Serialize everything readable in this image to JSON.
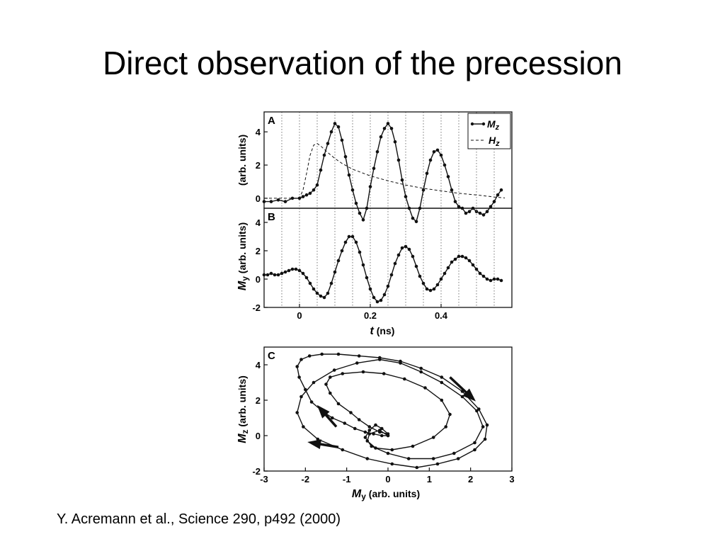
{
  "slide": {
    "title": "Direct observation of the precession",
    "citation": "Y. Acremann et al., Science 290, p492 (2000)"
  },
  "colors": {
    "line": "#111111",
    "grid": "#555555",
    "background": "#ffffff"
  },
  "chart_data": [
    {
      "panel": "A",
      "type": "line",
      "xlim": [
        -0.1,
        0.6
      ],
      "ylim": [
        -0.6,
        5.2
      ],
      "ytick_labels": [
        "0",
        "2",
        "4"
      ],
      "ylabel": "(arb. units)",
      "grid": "vertical-dotted",
      "legend": {
        "placement": "top-right",
        "entries": [
          "M",
          "H"
        ],
        "subscripts": [
          "z",
          "z"
        ]
      },
      "series": [
        {
          "name": "Mz",
          "style": "line-with-dots",
          "x": [
            -0.1,
            -0.08,
            -0.06,
            -0.04,
            -0.02,
            0,
            0.01,
            0.02,
            0.03,
            0.04,
            0.05,
            0.06,
            0.07,
            0.08,
            0.09,
            0.1,
            0.11,
            0.12,
            0.13,
            0.14,
            0.15,
            0.16,
            0.17,
            0.18,
            0.19,
            0.2,
            0.21,
            0.22,
            0.23,
            0.24,
            0.25,
            0.26,
            0.27,
            0.28,
            0.29,
            0.3,
            0.31,
            0.32,
            0.33,
            0.34,
            0.35,
            0.36,
            0.37,
            0.38,
            0.39,
            0.4,
            0.41,
            0.42,
            0.43,
            0.44,
            0.45,
            0.46,
            0.47,
            0.48,
            0.49,
            0.5,
            0.51,
            0.52,
            0.53,
            0.54,
            0.55,
            0.56,
            0.57
          ],
          "y": [
            -0.2,
            -0.2,
            -0.1,
            -0.2,
            0,
            0,
            0.1,
            0.2,
            0.3,
            0.5,
            0.8,
            1.7,
            2.6,
            3.3,
            4.0,
            4.5,
            4.3,
            3.5,
            2.5,
            1.4,
            0.5,
            -0.3,
            -0.9,
            -1.3,
            -0.6,
            0.7,
            1.8,
            2.8,
            3.7,
            4.2,
            4.5,
            4.2,
            3.4,
            2.3,
            1.1,
            0.1,
            -0.6,
            -1.2,
            -1.4,
            -0.6,
            0.5,
            1.5,
            2.3,
            2.8,
            2.9,
            2.6,
            2.0,
            1.3,
            0.5,
            -0.2,
            -0.5,
            -0.6,
            -0.9,
            -0.8,
            -0.6,
            -0.8,
            -0.9,
            -1.0,
            -0.8,
            -0.5,
            -0.2,
            0.2,
            0.5
          ]
        },
        {
          "name": "Hz",
          "style": "dashed",
          "x": [
            -0.1,
            -0.05,
            0,
            0.01,
            0.02,
            0.03,
            0.04,
            0.05,
            0.06,
            0.07,
            0.08,
            0.1,
            0.12,
            0.15,
            0.2,
            0.25,
            0.3,
            0.35,
            0.4,
            0.45,
            0.5,
            0.55,
            0.58
          ],
          "y": [
            0,
            0,
            0,
            0.5,
            1.5,
            2.6,
            3.2,
            3.3,
            3.15,
            2.95,
            2.75,
            2.4,
            2.1,
            1.75,
            1.35,
            1.05,
            0.8,
            0.6,
            0.45,
            0.3,
            0.2,
            0.08,
            0.02
          ]
        }
      ]
    },
    {
      "panel": "B",
      "type": "line",
      "xlim": [
        -0.1,
        0.6
      ],
      "ylim": [
        -2.0,
        5.0
      ],
      "xtick_labels": [
        "0",
        "0.2",
        "0.4"
      ],
      "ytick_labels": [
        "-2",
        "0",
        "2",
        "4"
      ],
      "xlabel": "(ns)",
      "xlabel_symbol": "t",
      "ylabel": "(arb. units)",
      "ylabel_symbol": "M",
      "ylabel_subscript": "y",
      "grid": "vertical-dotted",
      "series": [
        {
          "name": "My",
          "style": "line-with-dots",
          "x": [
            -0.1,
            -0.09,
            -0.08,
            -0.07,
            -0.06,
            -0.05,
            -0.04,
            -0.03,
            -0.02,
            -0.01,
            0,
            0.01,
            0.02,
            0.03,
            0.04,
            0.05,
            0.06,
            0.07,
            0.08,
            0.09,
            0.1,
            0.11,
            0.12,
            0.13,
            0.14,
            0.15,
            0.16,
            0.17,
            0.18,
            0.19,
            0.2,
            0.21,
            0.22,
            0.23,
            0.24,
            0.25,
            0.26,
            0.27,
            0.28,
            0.29,
            0.3,
            0.31,
            0.32,
            0.33,
            0.34,
            0.35,
            0.36,
            0.37,
            0.38,
            0.39,
            0.4,
            0.41,
            0.42,
            0.43,
            0.44,
            0.45,
            0.46,
            0.47,
            0.48,
            0.49,
            0.5,
            0.51,
            0.52,
            0.53,
            0.54,
            0.55,
            0.56,
            0.57
          ],
          "y": [
            0.3,
            0.3,
            0.4,
            0.3,
            0.3,
            0.4,
            0.5,
            0.6,
            0.7,
            0.7,
            0.6,
            0.4,
            0.1,
            -0.3,
            -0.7,
            -1.0,
            -1.2,
            -1.3,
            -1.0,
            -0.3,
            0.5,
            1.3,
            2.0,
            2.6,
            3.0,
            3.0,
            2.6,
            1.9,
            1.0,
            0.1,
            -0.7,
            -1.3,
            -1.6,
            -1.5,
            -1.1,
            -0.5,
            0.3,
            1.1,
            1.7,
            2.2,
            2.3,
            2.1,
            1.6,
            0.9,
            0.2,
            -0.3,
            -0.7,
            -0.8,
            -0.7,
            -0.4,
            0,
            0.4,
            0.8,
            1.2,
            1.4,
            1.6,
            1.6,
            1.5,
            1.3,
            1.0,
            0.7,
            0.4,
            0.2,
            0,
            -0.1,
            0,
            0,
            -0.1
          ]
        }
      ]
    },
    {
      "panel": "C",
      "type": "line",
      "xlim": [
        -3,
        3
      ],
      "ylim": [
        -2,
        5
      ],
      "xtick_labels": [
        "-3",
        "-2",
        "-1",
        "0",
        "1",
        "2",
        "3"
      ],
      "ytick_labels": [
        "-2",
        "0",
        "2",
        "4"
      ],
      "xlabel": "(arb. units)",
      "xlabel_symbol": "M",
      "xlabel_subscript": "y",
      "ylabel": "(arb. units)",
      "ylabel_symbol": "M",
      "ylabel_subscript": "z",
      "grid": "none",
      "series": [
        {
          "name": "trajectory",
          "style": "line-with-dots",
          "x": [
            0,
            -0.15,
            -0.35,
            -0.55,
            -0.8,
            -1.05,
            -1.35,
            -1.6,
            -1.85,
            -2.0,
            -2.15,
            -2.2,
            -2.1,
            -1.9,
            -1.6,
            -1.2,
            -0.7,
            -0.2,
            0.3,
            0.8,
            1.3,
            1.8,
            2.2,
            2.4,
            2.35,
            2.1,
            1.7,
            1.2,
            0.7,
            0.1,
            -0.5,
            -1.1,
            -1.7,
            -2.05,
            -2.2,
            -2.1,
            -1.8,
            -1.3,
            -0.75,
            -0.2,
            0.3,
            0.8,
            1.3,
            1.8,
            2.15,
            2.3,
            2.1,
            1.6,
            1.1,
            0.5,
            0,
            -0.4,
            -0.55,
            -0.45,
            -0.3,
            -0.15,
            0,
            -0.2,
            -0.45,
            -0.7,
            -0.9,
            -1.2,
            -1.4,
            -1.5,
            -1.4,
            -1.1,
            -0.6,
            -0.1,
            0.4,
            0.9,
            1.3,
            1.5,
            1.4,
            1.1,
            0.6,
            0.1,
            -0.3,
            -0.5,
            -0.45,
            -0.2,
            0
          ],
          "y": [
            0,
            0,
            0.1,
            0.2,
            0.4,
            0.7,
            1.0,
            1.4,
            1.9,
            2.6,
            3.3,
            3.9,
            4.3,
            4.5,
            4.6,
            4.6,
            4.5,
            4.4,
            4.2,
            3.8,
            3.3,
            2.5,
            1.5,
            0.6,
            -0.2,
            -0.8,
            -1.3,
            -1.6,
            -1.8,
            -1.6,
            -1.3,
            -0.8,
            -0.2,
            0.5,
            1.3,
            2.2,
            3.0,
            3.7,
            4.1,
            4.3,
            4.1,
            3.6,
            3.0,
            2.2,
            1.4,
            0.5,
            -0.4,
            -1.0,
            -1.3,
            -1.3,
            -1.0,
            -0.6,
            -0.1,
            0.3,
            0.6,
            0.4,
            0.1,
            0.2,
            0.5,
            0.9,
            1.3,
            1.8,
            2.4,
            2.9,
            3.3,
            3.5,
            3.6,
            3.5,
            3.2,
            2.7,
            2.0,
            1.2,
            0.5,
            -0.1,
            -0.6,
            -0.8,
            -0.7,
            -0.3,
            0.1,
            0.3,
            0
          ]
        }
      ]
    }
  ]
}
